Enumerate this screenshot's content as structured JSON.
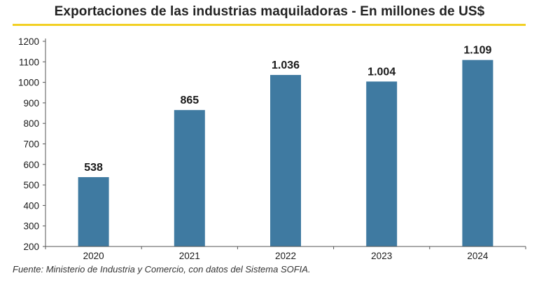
{
  "chart_data": {
    "type": "bar",
    "title": "Exportaciones de las industrias maquiladoras - En millones de US$",
    "categories": [
      "2020",
      "2021",
      "2022",
      "2023",
      "2024"
    ],
    "values": [
      538,
      865,
      1036,
      1004,
      1109
    ],
    "data_labels": [
      "538",
      "865",
      "1.036",
      "1.004",
      "1.109"
    ],
    "yticks": [
      "200",
      "300",
      "400",
      "500",
      "600",
      "700",
      "800",
      "900",
      "1000",
      "1100",
      "1200"
    ],
    "ylim": [
      200,
      1200
    ],
    "xlabel": "",
    "ylabel": "",
    "source": "Fuente: Ministerio de Industria y Comercio, con datos del Sistema SOFIA.",
    "colors": {
      "bar": "#3f7aa1",
      "accent": "#f2d024",
      "axis": "#555555"
    }
  }
}
